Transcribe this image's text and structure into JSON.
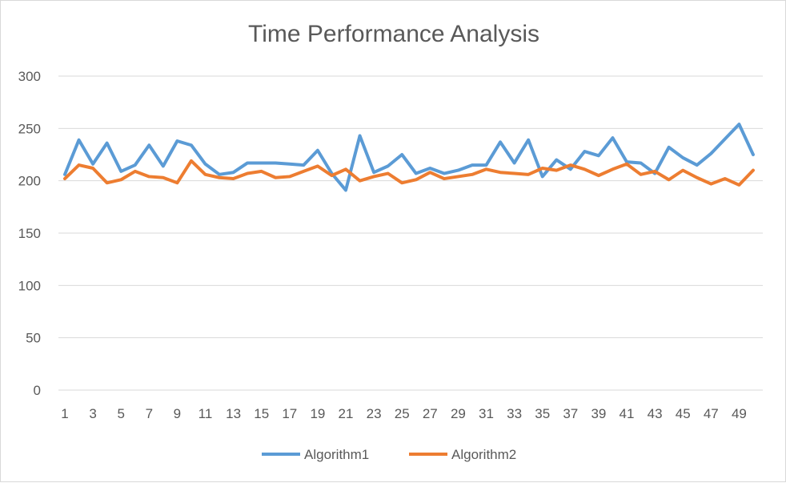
{
  "chart_data": {
    "type": "line",
    "title": "Time Performance Analysis",
    "xlabel": "",
    "ylabel": "",
    "ylim": [
      0,
      300
    ],
    "yticks": [
      0,
      50,
      100,
      150,
      200,
      250,
      300
    ],
    "x": [
      1,
      2,
      3,
      4,
      5,
      6,
      7,
      8,
      9,
      10,
      11,
      12,
      13,
      14,
      15,
      16,
      17,
      18,
      19,
      20,
      21,
      22,
      23,
      24,
      25,
      26,
      27,
      28,
      29,
      30,
      31,
      32,
      33,
      34,
      35,
      36,
      37,
      38,
      39,
      40,
      41,
      42,
      43,
      44,
      45,
      46,
      47,
      48,
      49,
      50
    ],
    "xtick_labels": [
      "1",
      "3",
      "5",
      "7",
      "9",
      "11",
      "13",
      "15",
      "17",
      "19",
      "21",
      "23",
      "25",
      "27",
      "29",
      "31",
      "33",
      "35",
      "37",
      "39",
      "41",
      "43",
      "45",
      "47",
      "49"
    ],
    "grid": true,
    "legend_position": "bottom",
    "series": [
      {
        "name": "Algorithm1",
        "color": "#5b9bd5",
        "values": [
          206,
          239,
          216,
          236,
          209,
          215,
          234,
          214,
          238,
          234,
          216,
          206,
          208,
          217,
          217,
          217,
          216,
          215,
          229,
          207,
          191,
          243,
          208,
          214,
          225,
          207,
          212,
          207,
          210,
          215,
          215,
          237,
          217,
          239,
          204,
          220,
          211,
          228,
          224,
          241,
          218,
          217,
          207,
          232,
          222,
          215,
          226,
          240,
          254,
          225
        ]
      },
      {
        "name": "Algorithm2",
        "color": "#ed7d31",
        "values": [
          202,
          215,
          212,
          198,
          201,
          209,
          204,
          203,
          198,
          219,
          206,
          203,
          202,
          207,
          209,
          203,
          204,
          209,
          214,
          205,
          211,
          200,
          204,
          207,
          198,
          201,
          208,
          202,
          204,
          206,
          211,
          208,
          207,
          206,
          212,
          210,
          215,
          211,
          205,
          211,
          216,
          206,
          209,
          201,
          210,
          203,
          197,
          202,
          196,
          210
        ]
      }
    ]
  }
}
